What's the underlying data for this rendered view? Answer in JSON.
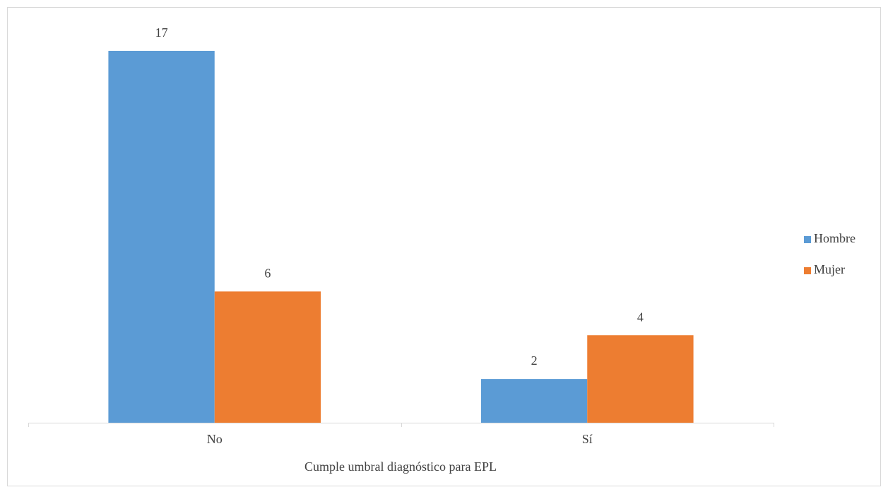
{
  "chart_data": {
    "type": "bar",
    "x_label": "Cumple umbral diagnóstico para EPL",
    "categories": [
      "No",
      "Sí"
    ],
    "series": [
      {
        "name": "Hombre",
        "color": "#5b9bd5",
        "values": [
          17,
          2
        ]
      },
      {
        "name": "Mujer",
        "color": "#ed7d31",
        "values": [
          6,
          4
        ]
      }
    ],
    "ylim": [
      0,
      18
    ],
    "legend": "right"
  }
}
